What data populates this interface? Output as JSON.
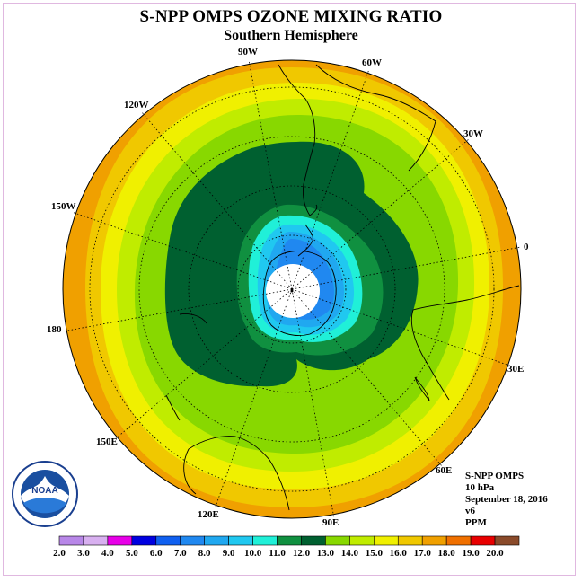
{
  "title": "S-NPP OMPS OZONE MIXING RATIO",
  "subtitle": "Southern Hemisphere",
  "longitude_labels": [
    "90W",
    "60W",
    "30W",
    "0",
    "30E",
    "60E",
    "90E",
    "120E",
    "150E",
    "180",
    "150W",
    "120W"
  ],
  "info": {
    "instrument": "S-NPP OMPS",
    "level": "10 hPa",
    "date": "September 18, 2016",
    "version": "v6",
    "units": "PPM"
  },
  "logo": {
    "text": "NOAA",
    "ring_text": "NATIONAL OCEANIC AND ATMOSPHERIC ADMINISTRATION · U.S. DEPARTMENT OF COMMERCE"
  },
  "colorbar": {
    "labels": [
      "2.0",
      "3.0",
      "4.0",
      "5.0",
      "6.0",
      "7.0",
      "8.0",
      "9.0",
      "10.0",
      "11.0",
      "12.0",
      "13.0",
      "14.0",
      "15.0",
      "16.0",
      "17.0",
      "18.0",
      "19.0",
      "20.0"
    ],
    "colors": [
      "#b887e8",
      "#d8b0f0",
      "#e800e8",
      "#0000e0",
      "#1060f0",
      "#2088f0",
      "#20a8f0",
      "#20c8f0",
      "#20f0d8",
      "#109040",
      "#006030",
      "#88d800",
      "#c0ec00",
      "#f0f000",
      "#f0c800",
      "#f0a000",
      "#f07000",
      "#e80000",
      "#8a4a2a"
    ]
  }
}
